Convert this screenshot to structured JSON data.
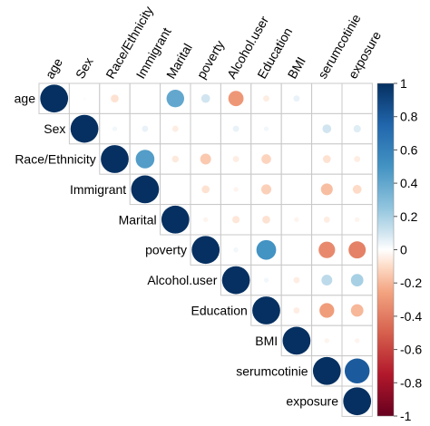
{
  "chart_data": {
    "type": "heatmap",
    "variables": [
      "age",
      "Sex",
      "Race/Ethnicity",
      "Immigrant",
      "Marital",
      "poverty",
      "Alcohol.user",
      "Education",
      "BMI",
      "serumcotinie",
      "exposure"
    ],
    "matrix": [
      [
        1.0,
        0.01,
        -0.08,
        0.0,
        0.4,
        0.1,
        -0.3,
        -0.05,
        0.05,
        0.0,
        0.0
      ],
      [
        null,
        1.0,
        0.03,
        0.05,
        -0.05,
        0.0,
        0.05,
        0.03,
        0.0,
        0.1,
        0.07
      ],
      [
        null,
        null,
        1.0,
        0.45,
        -0.06,
        -0.15,
        -0.05,
        -0.12,
        0.0,
        -0.08,
        -0.05
      ],
      [
        null,
        null,
        null,
        1.0,
        0.0,
        -0.08,
        -0.03,
        -0.13,
        0.0,
        -0.18,
        -0.1
      ],
      [
        null,
        null,
        null,
        null,
        1.0,
        -0.03,
        -0.07,
        -0.08,
        -0.03,
        -0.05,
        -0.03
      ],
      [
        null,
        null,
        null,
        null,
        null,
        1.0,
        0.03,
        0.5,
        0.0,
        -0.35,
        -0.38
      ],
      [
        null,
        null,
        null,
        null,
        null,
        null,
        1.0,
        0.03,
        -0.05,
        0.15,
        0.2
      ],
      [
        null,
        null,
        null,
        null,
        null,
        null,
        null,
        1.0,
        -0.05,
        -0.28,
        -0.2
      ],
      [
        null,
        null,
        null,
        null,
        null,
        null,
        null,
        null,
        1.0,
        -0.03,
        -0.03
      ],
      [
        null,
        null,
        null,
        null,
        null,
        null,
        null,
        null,
        null,
        1.0,
        0.8
      ],
      [
        null,
        null,
        null,
        null,
        null,
        null,
        null,
        null,
        null,
        null,
        1.0
      ]
    ],
    "colorbar": {
      "ticks": [
        "1",
        "0.8",
        "0.6",
        "0.4",
        "0.2",
        "0",
        "-0.2",
        "-0.4",
        "-0.6",
        "-0.8",
        "-1"
      ],
      "range": [
        -1,
        1
      ],
      "colors": {
        "neg": "#67001f",
        "mid": "#ffffff",
        "pos": "#053061"
      }
    },
    "title": "",
    "xlabel": "",
    "ylabel": ""
  }
}
